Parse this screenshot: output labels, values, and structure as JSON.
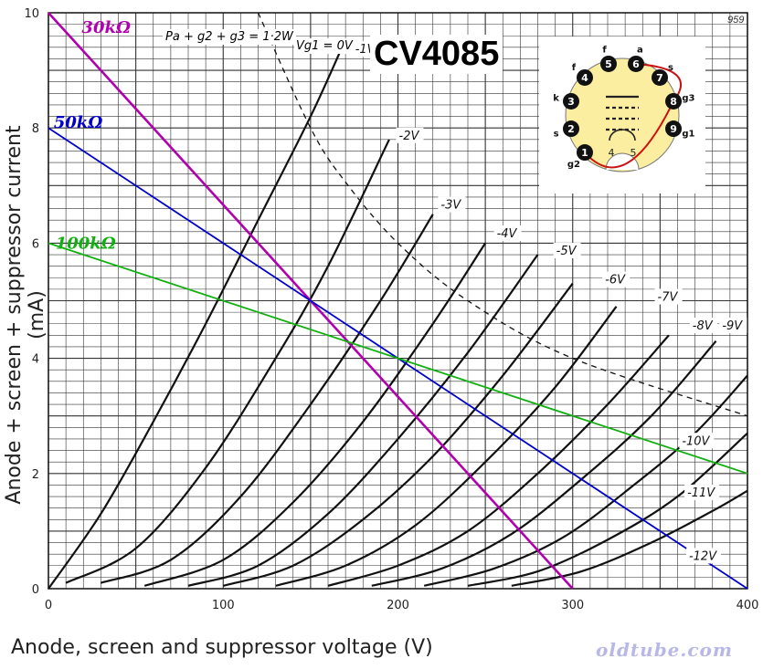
{
  "title": "CV4085",
  "footer": "oldtube.com",
  "corner_text": "959",
  "dissipation_label": "Pa + g2 + g3 = 1·2W",
  "vg0_label": "Vg1 = 0V",
  "colors": {
    "load30": "#b000b0",
    "load50": "#0000cc",
    "load100": "#10b010",
    "curve": "#111111",
    "grid": "#333333"
  },
  "chart_data": {
    "type": "line",
    "xlabel": "Anode, screen and suppressor voltage (V)",
    "ylabel": "Anode + screen + suppressor current (mA)",
    "xlim": [
      0,
      400
    ],
    "ylim": [
      0,
      10
    ],
    "x_ticks": [
      "0",
      "100",
      "200",
      "300",
      "400"
    ],
    "y_ticks": [
      "0",
      "2",
      "4",
      "6",
      "8",
      "10"
    ],
    "grid": true,
    "curves": [
      {
        "name": "-1V",
        "x": [
          0,
          30,
          60,
          90,
          120,
          150,
          168
        ],
        "y": [
          0,
          1.3,
          2.9,
          4.6,
          6.4,
          8.2,
          9.4
        ]
      },
      {
        "name": "-2V",
        "x": [
          10,
          50,
          90,
          130,
          160,
          195
        ],
        "y": [
          0.1,
          0.7,
          2.1,
          4.0,
          5.6,
          7.8
        ]
      },
      {
        "name": "-3V",
        "x": [
          30,
          70,
          110,
          150,
          190,
          220
        ],
        "y": [
          0.1,
          0.5,
          1.6,
          3.2,
          5.0,
          6.5
        ]
      },
      {
        "name": "-4V",
        "x": [
          55,
          100,
          140,
          180,
          220,
          250
        ],
        "y": [
          0.05,
          0.5,
          1.5,
          2.9,
          4.6,
          6.0
        ]
      },
      {
        "name": "-5V",
        "x": [
          80,
          120,
          160,
          200,
          240,
          280
        ],
        "y": [
          0.05,
          0.4,
          1.3,
          2.6,
          4.1,
          5.8
        ]
      },
      {
        "name": "-6V",
        "x": [
          100,
          140,
          180,
          220,
          260,
          300
        ],
        "y": [
          0.05,
          0.4,
          1.2,
          2.3,
          3.7,
          5.3
        ]
      },
      {
        "name": "-7V",
        "x": [
          130,
          170,
          210,
          250,
          290,
          325
        ],
        "y": [
          0.05,
          0.4,
          1.1,
          2.2,
          3.5,
          4.9
        ]
      },
      {
        "name": "-8V",
        "x": [
          160,
          200,
          240,
          280,
          320,
          355
        ],
        "y": [
          0.05,
          0.4,
          1.0,
          2.0,
          3.2,
          4.4
        ]
      },
      {
        "name": "-9V",
        "x": [
          185,
          225,
          265,
          305,
          345,
          382
        ],
        "y": [
          0.05,
          0.35,
          0.95,
          1.9,
          3.0,
          4.3
        ]
      },
      {
        "name": "-10V",
        "x": [
          215,
          255,
          295,
          335,
          370,
          400
        ],
        "y": [
          0.05,
          0.35,
          0.9,
          1.8,
          2.7,
          3.7
        ]
      },
      {
        "name": "-11V",
        "x": [
          240,
          280,
          320,
          360,
          400
        ],
        "y": [
          0.05,
          0.3,
          0.85,
          1.6,
          2.7
        ]
      },
      {
        "name": "-12V",
        "x": [
          265,
          305,
          345,
          380,
          400
        ],
        "y": [
          0.05,
          0.3,
          0.8,
          1.35,
          1.7
        ]
      }
    ],
    "curve_labels": [
      {
        "text": "-1V",
        "x": 175,
        "y": 9.3
      },
      {
        "text": "-2V",
        "x": 200,
        "y": 7.8
      },
      {
        "text": "-3V",
        "x": 224,
        "y": 6.6
      },
      {
        "text": "-4V",
        "x": 256,
        "y": 6.1
      },
      {
        "text": "-5V",
        "x": 290,
        "y": 5.8
      },
      {
        "text": "-6V",
        "x": 318,
        "y": 5.3
      },
      {
        "text": "-7V",
        "x": 348,
        "y": 5.0
      },
      {
        "text": "-8V",
        "x": 368,
        "y": 4.5
      },
      {
        "text": "-9V",
        "x": 385,
        "y": 4.5
      },
      {
        "text": "-10V",
        "x": 362,
        "y": 2.5
      },
      {
        "text": "-11V",
        "x": 365,
        "y": 1.6
      },
      {
        "text": "-12V",
        "x": 366,
        "y": 0.5
      }
    ],
    "dissipation_curve": {
      "x": [
        120,
        150,
        170,
        200,
        240,
        300,
        400
      ],
      "y": [
        10,
        8,
        7.06,
        6.0,
        5.0,
        4.0,
        3.0
      ]
    },
    "load_lines": [
      {
        "name": "30kΩ",
        "x": [
          0,
          300
        ],
        "y": [
          10,
          0
        ],
        "label_x": 18,
        "label_y": 9.75
      },
      {
        "name": "50kΩ",
        "x": [
          0,
          400
        ],
        "y": [
          8,
          0
        ],
        "label_x": 2,
        "label_y": 8.1
      },
      {
        "name": "100kΩ",
        "x": [
          0,
          400
        ],
        "y": [
          6,
          2
        ],
        "label_x": 3,
        "label_y": 6.0
      }
    ]
  },
  "pinout": {
    "pins": [
      {
        "num": "1",
        "name": "g2"
      },
      {
        "num": "2",
        "name": "s"
      },
      {
        "num": "3",
        "name": "k"
      },
      {
        "num": "4",
        "name": "f"
      },
      {
        "num": "5",
        "name": "f"
      },
      {
        "num": "6",
        "name": "a"
      },
      {
        "num": "7",
        "name": "s"
      },
      {
        "num": "8",
        "name": "g3"
      },
      {
        "num": "9",
        "name": "g1"
      }
    ],
    "inner_labels": [
      "4",
      "5"
    ]
  }
}
